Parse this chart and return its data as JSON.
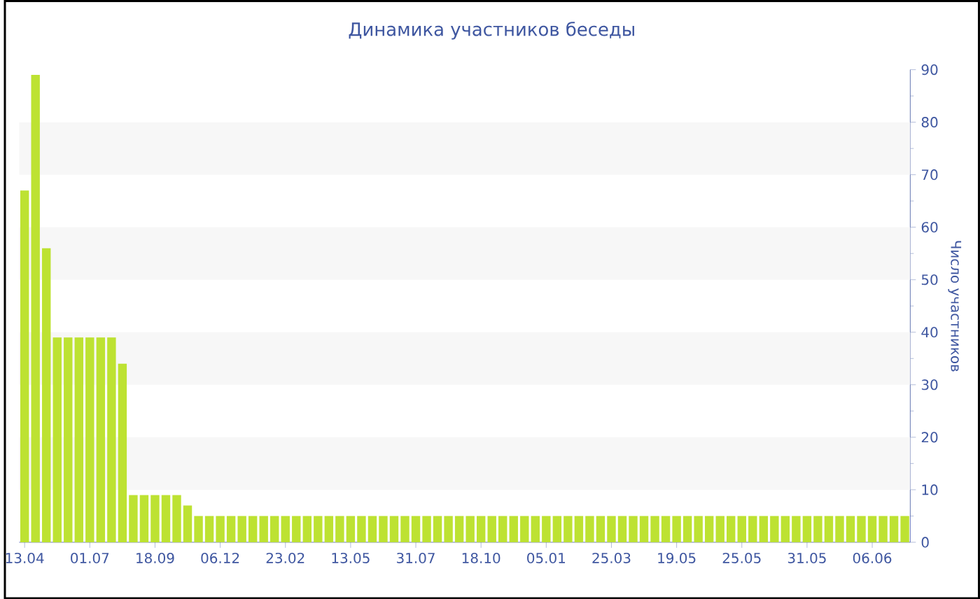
{
  "chart_data": {
    "type": "bar",
    "title": "Динамика участников беседы",
    "ylabel": "Число участников",
    "categories": [
      "13.04",
      null,
      null,
      null,
      null,
      null,
      "01.07",
      null,
      null,
      null,
      null,
      null,
      "18.09",
      null,
      null,
      null,
      null,
      null,
      "06.12",
      null,
      null,
      null,
      null,
      null,
      "23.02",
      null,
      null,
      null,
      null,
      null,
      "13.05",
      null,
      null,
      null,
      null,
      null,
      "31.07",
      null,
      null,
      null,
      null,
      null,
      "18.10",
      null,
      null,
      null,
      null,
      null,
      "05.01",
      null,
      null,
      null,
      null,
      null,
      "25.03",
      null,
      null,
      null,
      null,
      null,
      "19.05",
      null,
      null,
      null,
      null,
      null,
      "25.05",
      null,
      null,
      null,
      null,
      null,
      "31.05",
      null,
      null,
      null,
      null,
      null,
      "06.06",
      null,
      null,
      null
    ],
    "values": [
      67,
      89,
      56,
      39,
      39,
      39,
      39,
      39,
      39,
      34,
      9,
      9,
      9,
      9,
      9,
      7,
      5,
      5,
      5,
      5,
      5,
      5,
      5,
      5,
      5,
      5,
      5,
      5,
      5,
      5,
      5,
      5,
      5,
      5,
      5,
      5,
      5,
      5,
      5,
      5,
      5,
      5,
      5,
      5,
      5,
      5,
      5,
      5,
      5,
      5,
      5,
      5,
      5,
      5,
      5,
      5,
      5,
      5,
      5,
      5,
      5,
      5,
      5,
      5,
      5,
      5,
      5,
      5,
      5,
      5,
      5,
      5,
      5,
      5,
      5,
      5,
      5,
      5,
      5,
      5,
      5,
      5
    ],
    "color": "#bde232",
    "ylim": [
      0,
      90
    ],
    "yticks": [
      0,
      10,
      20,
      30,
      40,
      50,
      60,
      70,
      80,
      90
    ]
  }
}
